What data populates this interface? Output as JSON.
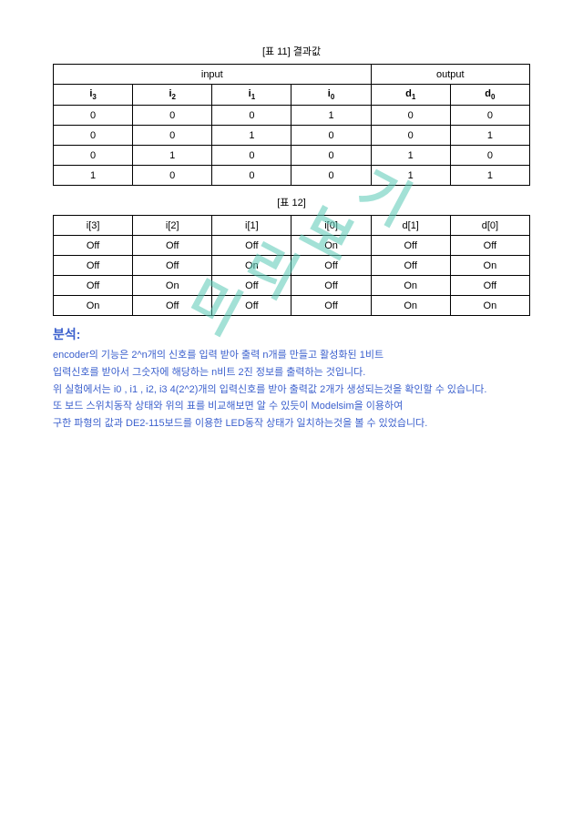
{
  "watermark": {
    "c1": "미",
    "c2": "리",
    "c3": "보",
    "c4": "기"
  },
  "table1": {
    "caption": "[표 11] 결과값",
    "group_input": "input",
    "group_output": "output",
    "headers": {
      "i3a": "i",
      "i3b": "3",
      "i2a": "i",
      "i2b": "2",
      "i1a": "i",
      "i1b": "1",
      "i0a": "i",
      "i0b": "0",
      "d1a": "d",
      "d1b": "1",
      "d0a": "d",
      "d0b": "0"
    },
    "rows": [
      [
        "0",
        "0",
        "0",
        "1",
        "0",
        "0"
      ],
      [
        "0",
        "0",
        "1",
        "0",
        "0",
        "1"
      ],
      [
        "0",
        "1",
        "0",
        "0",
        "1",
        "0"
      ],
      [
        "1",
        "0",
        "0",
        "0",
        "1",
        "1"
      ]
    ]
  },
  "table2": {
    "caption": "[표 12]",
    "headers": [
      "i[3]",
      "i[2]",
      "i[1]",
      "i[0]",
      "d[1]",
      "d[0]"
    ],
    "rows": [
      [
        "Off",
        "Off",
        "Off",
        "On",
        "Off",
        "Off"
      ],
      [
        "Off",
        "Off",
        "On",
        "Off",
        "Off",
        "On"
      ],
      [
        "Off",
        "On",
        "Off",
        "Off",
        "On",
        "Off"
      ],
      [
        "On",
        "Off",
        "Off",
        "Off",
        "On",
        "On"
      ]
    ]
  },
  "analysis": {
    "heading": "분석:",
    "p1": "encoder의 기능은 2^n개의 신호를 입력 받아 출력 n개를 만들고 활성화된 1비트",
    "p2": "입력신호를 받아서 그숫자에 해당하는 n비트 2진 정보를 출력하는 것입니다.",
    "p3": "위 실험에서는 i0 , i1 , i2, i3 4(2^2)개의 입력신호를 받아 출력값 2개가 생성되는것을 확인할 수 있습니다.",
    "p4": "또 보드 스위치동작 상태와 위의 표를 비교해보면 알 수 있듯이 Modelsim을 이용하여",
    "p5": "구한 파형의 값과 DE2-115보드를 이용한 LED동작 상태가 일치하는것을 볼 수 있었습니다."
  },
  "colors": {
    "text_black": "#000000",
    "text_blue": "#3a5fcd",
    "watermark": "rgba(88,200,180,0.55)",
    "background": "#ffffff",
    "border": "#000000"
  }
}
